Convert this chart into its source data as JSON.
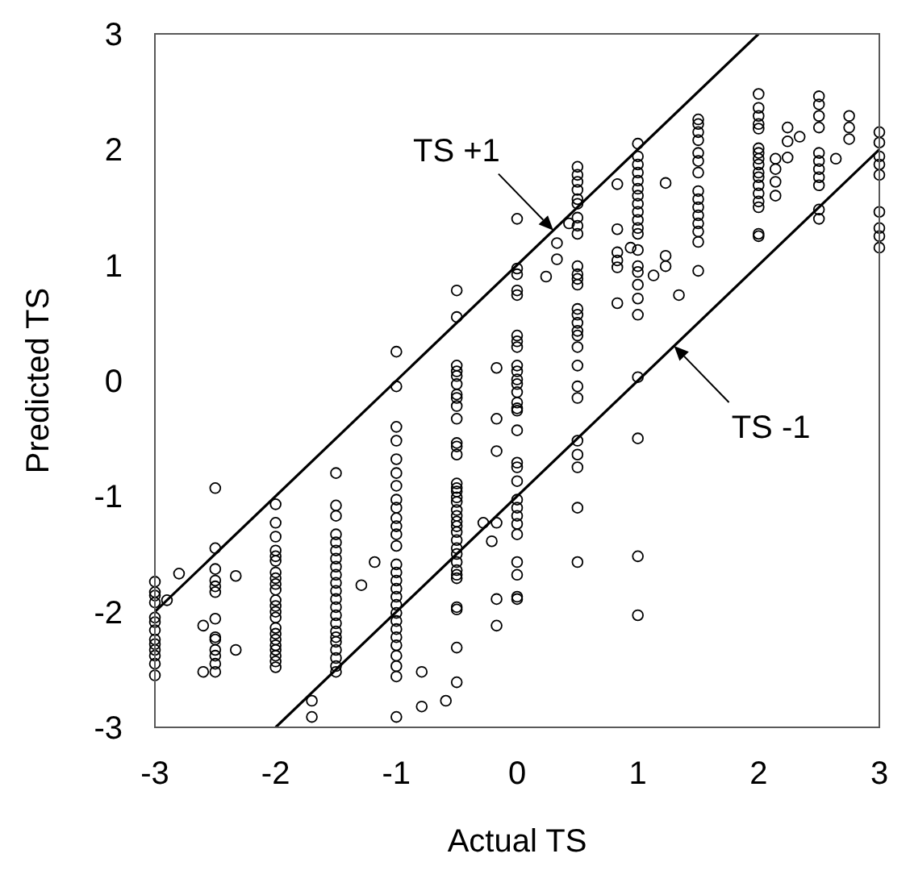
{
  "chart_data": {
    "type": "scatter",
    "xlabel": "Actual TS",
    "ylabel": "Predicted TS",
    "xlim": [
      -3,
      3
    ],
    "ylim": [
      -3,
      3
    ],
    "xticks": [
      -3,
      -2,
      -1,
      0,
      1,
      2,
      3
    ],
    "yticks": [
      -3,
      -2,
      -1,
      0,
      1,
      2,
      3
    ],
    "grid": false,
    "annotations": [
      {
        "text": "TS +1",
        "x": 0.3,
        "y": 1.3
      },
      {
        "text": "TS -1",
        "x": 1.3,
        "y": 0.3
      }
    ],
    "series": [
      {
        "marker": "circle",
        "color": "#000000",
        "x": [
          -3,
          -3,
          -3,
          -3,
          -3,
          -3,
          -3,
          -3,
          -3,
          -3,
          -3,
          -3,
          -3,
          -2.9,
          -2.8,
          -2.5,
          -2.5,
          -2.5,
          -2.5,
          -2.5,
          -2.5,
          -2.5,
          -2.5,
          -2.5,
          -2.5,
          -2.5,
          -2.5,
          -2.5,
          -2.6,
          -2.6,
          -2.33,
          -2.33,
          -2,
          -2,
          -2,
          -2,
          -2,
          -2,
          -2,
          -2,
          -2,
          -2,
          -2,
          -2,
          -2,
          -2,
          -2,
          -2,
          -2,
          -2,
          -2,
          -2,
          -2,
          -2,
          -1.5,
          -1.5,
          -1.5,
          -1.5,
          -1.5,
          -1.5,
          -1.5,
          -1.5,
          -1.5,
          -1.5,
          -1.5,
          -1.5,
          -1.5,
          -1.5,
          -1.5,
          -1.5,
          -1.5,
          -1.5,
          -1.5,
          -1.5,
          -1.5,
          -1.5,
          -1.29,
          -1.18,
          -1.7,
          -1.7,
          -0.79,
          -0.79,
          -0.59,
          -1,
          -1,
          -1,
          -1,
          -1,
          -1,
          -1,
          -1,
          -1,
          -1,
          -1,
          -1,
          -1,
          -1,
          -1,
          -1,
          -1,
          -1,
          -1,
          -1,
          -1,
          -1,
          -1,
          -1,
          -1,
          -1,
          -1,
          -1,
          -0.5,
          -0.5,
          -0.5,
          -0.5,
          -0.5,
          -0.5,
          -0.5,
          -0.5,
          -0.5,
          -0.5,
          -0.5,
          -0.5,
          -0.5,
          -0.5,
          -0.5,
          -0.5,
          -0.5,
          -0.5,
          -0.5,
          -0.5,
          -0.5,
          -0.5,
          -0.5,
          -0.5,
          -0.5,
          -0.5,
          -0.5,
          -0.5,
          -0.5,
          -0.5,
          -0.5,
          -0.5,
          -0.5,
          -0.5,
          -0.17,
          -0.17,
          -0.17,
          -0.17,
          -0.17,
          -0.17,
          -0.28,
          -0.21,
          0,
          0,
          0,
          0,
          0,
          0,
          0,
          0,
          0,
          0,
          0,
          0,
          0,
          0,
          0,
          0,
          0,
          0,
          0,
          0,
          0,
          0,
          0,
          0,
          0,
          0,
          0,
          0,
          0,
          0.24,
          0.33,
          0.33,
          0.43,
          0.5,
          0.5,
          0.5,
          0.5,
          0.5,
          0.5,
          0.5,
          0.5,
          0.5,
          0.5,
          0.5,
          0.5,
          0.5,
          0.5,
          0.5,
          0.5,
          0.5,
          0.5,
          0.5,
          0.5,
          0.5,
          0.5,
          0.5,
          0.5,
          0.5,
          0.5,
          0.5,
          0.83,
          0.83,
          0.83,
          0.83,
          0.83,
          0.83,
          0.94,
          1.13,
          1.23,
          1.23,
          1.23,
          1.34,
          1,
          1,
          1,
          1,
          1,
          1,
          1,
          1,
          1,
          1,
          1,
          1,
          1,
          1,
          1,
          1,
          1,
          1,
          1,
          1,
          1,
          1,
          1.5,
          1.5,
          1.5,
          1.5,
          1.5,
          1.5,
          1.5,
          1.5,
          1.5,
          1.5,
          1.5,
          1.5,
          1.5,
          1.5,
          1.5,
          2,
          2,
          2,
          2,
          2,
          2,
          2,
          2,
          2,
          2,
          2,
          2,
          2,
          2,
          2,
          2,
          2,
          2.14,
          2.14,
          2.14,
          2.14,
          2.24,
          2.24,
          2.24,
          2.34,
          2.5,
          2.5,
          2.5,
          2.5,
          2.5,
          2.5,
          2.5,
          2.5,
          2.5,
          2.5,
          2.5,
          2.64,
          2.75,
          2.75,
          2.75,
          3,
          3,
          3,
          3,
          3,
          3,
          3,
          3,
          3
        ],
        "values": [
          -1.74,
          -1.83,
          -1.86,
          -1.92,
          -2.05,
          -2.09,
          -2.16,
          -2.24,
          -2.28,
          -2.33,
          -2.38,
          -2.45,
          -2.55,
          -1.9,
          -1.67,
          -0.93,
          -1.45,
          -1.63,
          -1.73,
          -1.78,
          -1.83,
          -2.06,
          -2.22,
          -2.24,
          -2.33,
          -2.38,
          -2.45,
          -2.52,
          -2.12,
          -2.52,
          -1.69,
          -2.33,
          -1.07,
          -1.23,
          -1.35,
          -1.47,
          -1.52,
          -1.56,
          -1.66,
          -1.71,
          -1.76,
          -1.81,
          -1.9,
          -1.95,
          -2,
          -2.05,
          -2.14,
          -2.19,
          -2.24,
          -2.29,
          -2.33,
          -2.38,
          -2.43,
          -2.48,
          -0.8,
          -1.08,
          -1.17,
          -1.33,
          -1.4,
          -1.47,
          -1.54,
          -1.61,
          -1.68,
          -1.75,
          -1.82,
          -1.89,
          -1.96,
          -2.03,
          -2.1,
          -2.17,
          -2.22,
          -2.26,
          -2.33,
          -2.4,
          -2.47,
          -2.52,
          -1.77,
          -1.57,
          -2.77,
          -2.91,
          -2.52,
          -2.82,
          -2.77,
          0.25,
          -0.05,
          -0.4,
          -0.52,
          -0.68,
          -0.8,
          -0.91,
          -1.03,
          -1.1,
          -1.19,
          -1.26,
          -1.33,
          -1.43,
          -1.59,
          -1.66,
          -1.73,
          -1.8,
          -1.87,
          -1.94,
          -2.01,
          -2.08,
          -2.15,
          -2.22,
          -2.29,
          -2.38,
          -2.47,
          -2.56,
          -2.91,
          0.78,
          0.55,
          0.13,
          0.08,
          0.04,
          -0.03,
          -0.12,
          -0.15,
          -0.22,
          -0.33,
          -0.54,
          -0.57,
          -0.64,
          -0.89,
          -0.93,
          -0.96,
          -1.01,
          -1.05,
          -1.12,
          -1.17,
          -1.22,
          -1.26,
          -1.31,
          -1.38,
          -1.45,
          -1.5,
          -1.57,
          -1.64,
          -1.68,
          -1.71,
          -1.96,
          -1.98,
          -2.31,
          -2.61,
          0.11,
          -0.33,
          -0.61,
          -1.23,
          -1.89,
          -2.12,
          -1.23,
          -1.39,
          1.4,
          0.97,
          0.92,
          0.78,
          0.74,
          0.39,
          0.34,
          0.29,
          0.13,
          0.08,
          0.01,
          -0.03,
          -0.1,
          -0.19,
          -0.24,
          -0.26,
          -0.43,
          -0.71,
          -0.75,
          -0.87,
          -1.03,
          -1.1,
          -1.17,
          -1.24,
          -1.33,
          -1.57,
          -1.68,
          -1.87,
          -1.89,
          0.9,
          1.05,
          1.19,
          1.36,
          1.85,
          1.78,
          1.72,
          1.65,
          1.57,
          1.53,
          1.41,
          1.34,
          1.27,
          0.99,
          0.92,
          0.88,
          0.83,
          0.62,
          0.57,
          0.5,
          0.43,
          0.39,
          0.29,
          0.13,
          -0.05,
          -0.15,
          -0.52,
          -0.64,
          -0.75,
          -1.1,
          -1.57,
          1.7,
          1.31,
          1.11,
          1.04,
          0.98,
          0.67,
          1.15,
          0.91,
          1.71,
          1.08,
          0.99,
          0.74,
          2.05,
          1.94,
          1.87,
          1.8,
          1.73,
          1.66,
          1.6,
          1.53,
          1.46,
          1.39,
          1.32,
          1.27,
          1.13,
          0.99,
          0.94,
          0.83,
          0.71,
          0.57,
          0.03,
          -0.5,
          -1.52,
          -2.03,
          2.26,
          2.22,
          2.15,
          2.08,
          1.97,
          1.9,
          1.8,
          1.64,
          1.57,
          1.5,
          1.43,
          1.36,
          1.29,
          1.2,
          0.95,
          2.48,
          2.36,
          2.29,
          2.22,
          2.18,
          2.01,
          1.97,
          1.92,
          1.87,
          1.8,
          1.76,
          1.69,
          1.62,
          1.55,
          1.5,
          1.27,
          1.25,
          1.92,
          1.83,
          1.72,
          1.6,
          2.19,
          2.07,
          1.93,
          2.11,
          2.46,
          2.39,
          2.29,
          2.19,
          1.97,
          1.9,
          1.83,
          1.76,
          1.69,
          1.48,
          1.4,
          1.92,
          2.29,
          2.19,
          2.09,
          2.15,
          2.06,
          1.94,
          1.87,
          1.78,
          1.46,
          1.32,
          1.25,
          1.15
        ]
      },
      {
        "type": "line",
        "color": "#000000",
        "line_style": "solid",
        "x": [
          -3,
          2
        ],
        "values": [
          -2,
          3
        ]
      },
      {
        "type": "line",
        "color": "#000000",
        "line_style": "solid",
        "x": [
          -2,
          3
        ],
        "values": [
          -3,
          2
        ]
      }
    ]
  }
}
